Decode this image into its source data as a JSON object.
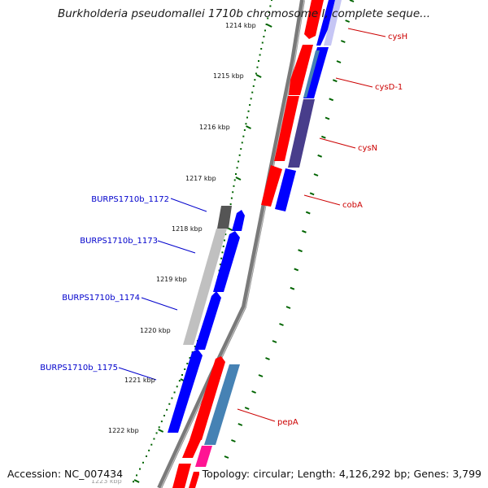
{
  "title": "Burkholderia pseudomallei 1710b chromosome I, complete seque...",
  "footer": {
    "accession": "Accession: NC_007434",
    "summary": "Topology: circular; Length: 4,126,292 bp; Genes: 3,799"
  },
  "scale_labels": [
    "1214 kbp",
    "1215 kbp",
    "1216 kbp",
    "1217 kbp",
    "1218 kbp",
    "1219 kbp",
    "1220 kbp",
    "1221 kbp",
    "1222 kbp",
    "1223 kbp"
  ],
  "forward_gene_labels": [
    "BURPS1710b_1172",
    "BURPS1710b_1173",
    "BURPS1710b_1174",
    "BURPS1710b_1175"
  ],
  "reverse_gene_labels": [
    "cysH",
    "cysD-1",
    "cysN",
    "cobA",
    "pepA"
  ],
  "colors": {
    "backbone": "#777777",
    "forward_label": "#0000cc",
    "reverse_label": "#cc0000",
    "tick": "#006400",
    "cds_red": "#ff0000",
    "cds_blue": "#0000ff",
    "cds_steel": "#4682b4",
    "cds_slate": "#483d8b",
    "cds_gray": "#bfbfbf",
    "cds_dark": "#555555",
    "cds_pink": "#ff1493",
    "cds_lavender": "#c6c6f5"
  }
}
